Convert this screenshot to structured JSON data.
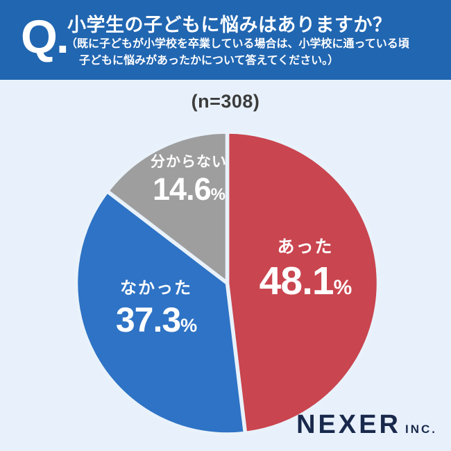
{
  "header": {
    "q_label": "Q.",
    "title": "小学生の子どもに悩みはありますか？",
    "subtitle_line1": "（既に子どもが小学校を卒業している場合は、小学校に通っている頃",
    "subtitle_line2": "子どもに悩みがあったかについて答えてください。）",
    "bg_color": "#2166b1"
  },
  "sample_label": "(n=308)",
  "chart_data": {
    "type": "pie",
    "title": "小学生の子どもに悩みはありますか？",
    "n": 308,
    "start_angle_deg": 0,
    "direction": "clockwise",
    "divider_color": "#e9f2fb",
    "slices": [
      {
        "label": "あった",
        "value": 48.1,
        "value_str": "48.1",
        "unit": "%",
        "color": "#c9454f"
      },
      {
        "label": "なかった",
        "value": 37.3,
        "value_str": "37.3",
        "unit": "%",
        "color": "#2e73c5"
      },
      {
        "label": "分からない",
        "value": 14.6,
        "value_str": "14.6",
        "unit": "%",
        "color": "#9e9e9e"
      }
    ]
  },
  "footer": {
    "brand": "NEXER",
    "brand_suffix": "INC."
  },
  "colors": {
    "page_bg": "#e8f1fb",
    "header_bg": "#2166b1",
    "n_label_text": "#3c3c3c",
    "slice_text": "#ffffff",
    "brand_text": "#19294d"
  }
}
